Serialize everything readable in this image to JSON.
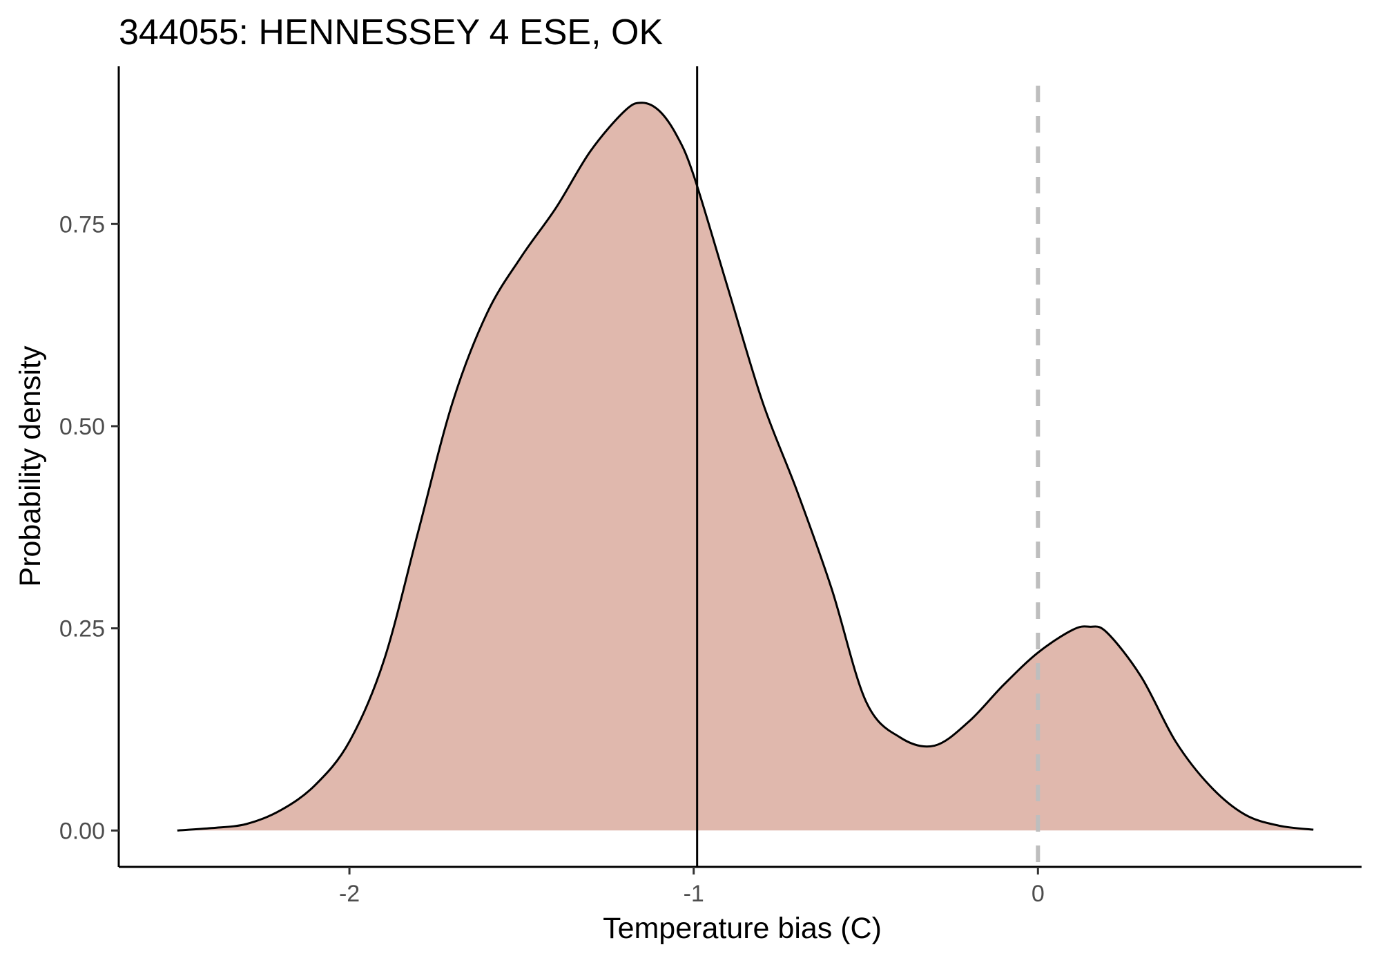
{
  "chart_data": {
    "type": "area",
    "title": "344055: HENNESSEY 4 ESE, OK",
    "xlabel": "Temperature bias (C)",
    "ylabel": "Probability density",
    "xlim": [
      -2.67,
      0.94
    ],
    "ylim": [
      -0.045,
      0.945
    ],
    "x_ticks": [
      {
        "value": -2,
        "label": "-2"
      },
      {
        "value": -1,
        "label": "-1"
      },
      {
        "value": 0,
        "label": "0"
      }
    ],
    "y_ticks": [
      {
        "value": 0.0,
        "label": "0.00"
      },
      {
        "value": 0.25,
        "label": "0.25"
      },
      {
        "value": 0.5,
        "label": "0.50"
      },
      {
        "value": 0.75,
        "label": "0.75"
      }
    ],
    "grid": false,
    "fill_color": "#e0b8ad",
    "line_color": "#000000",
    "x": [
      -2.5,
      -2.4,
      -2.3,
      -2.2,
      -2.1,
      -2.0,
      -1.9,
      -1.8,
      -1.7,
      -1.6,
      -1.5,
      -1.4,
      -1.3,
      -1.2,
      -1.15,
      -1.1,
      -1.05,
      -1.0,
      -0.9,
      -0.8,
      -0.7,
      -0.6,
      -0.5,
      -0.4,
      -0.3,
      -0.2,
      -0.1,
      0.0,
      0.1,
      0.15,
      0.2,
      0.3,
      0.4,
      0.5,
      0.6,
      0.7,
      0.8
    ],
    "y": [
      0.0,
      0.003,
      0.008,
      0.025,
      0.056,
      0.11,
      0.21,
      0.37,
      0.53,
      0.64,
      0.71,
      0.77,
      0.84,
      0.89,
      0.9,
      0.89,
      0.86,
      0.81,
      0.67,
      0.53,
      0.42,
      0.3,
      0.16,
      0.115,
      0.105,
      0.135,
      0.18,
      0.22,
      0.248,
      0.252,
      0.245,
      0.19,
      0.11,
      0.055,
      0.02,
      0.006,
      0.001
    ],
    "reference_lines": [
      {
        "x": -0.99,
        "style": "solid",
        "color": "#000000"
      },
      {
        "x": 0,
        "style": "dashed",
        "color": "#bebebe"
      }
    ]
  }
}
